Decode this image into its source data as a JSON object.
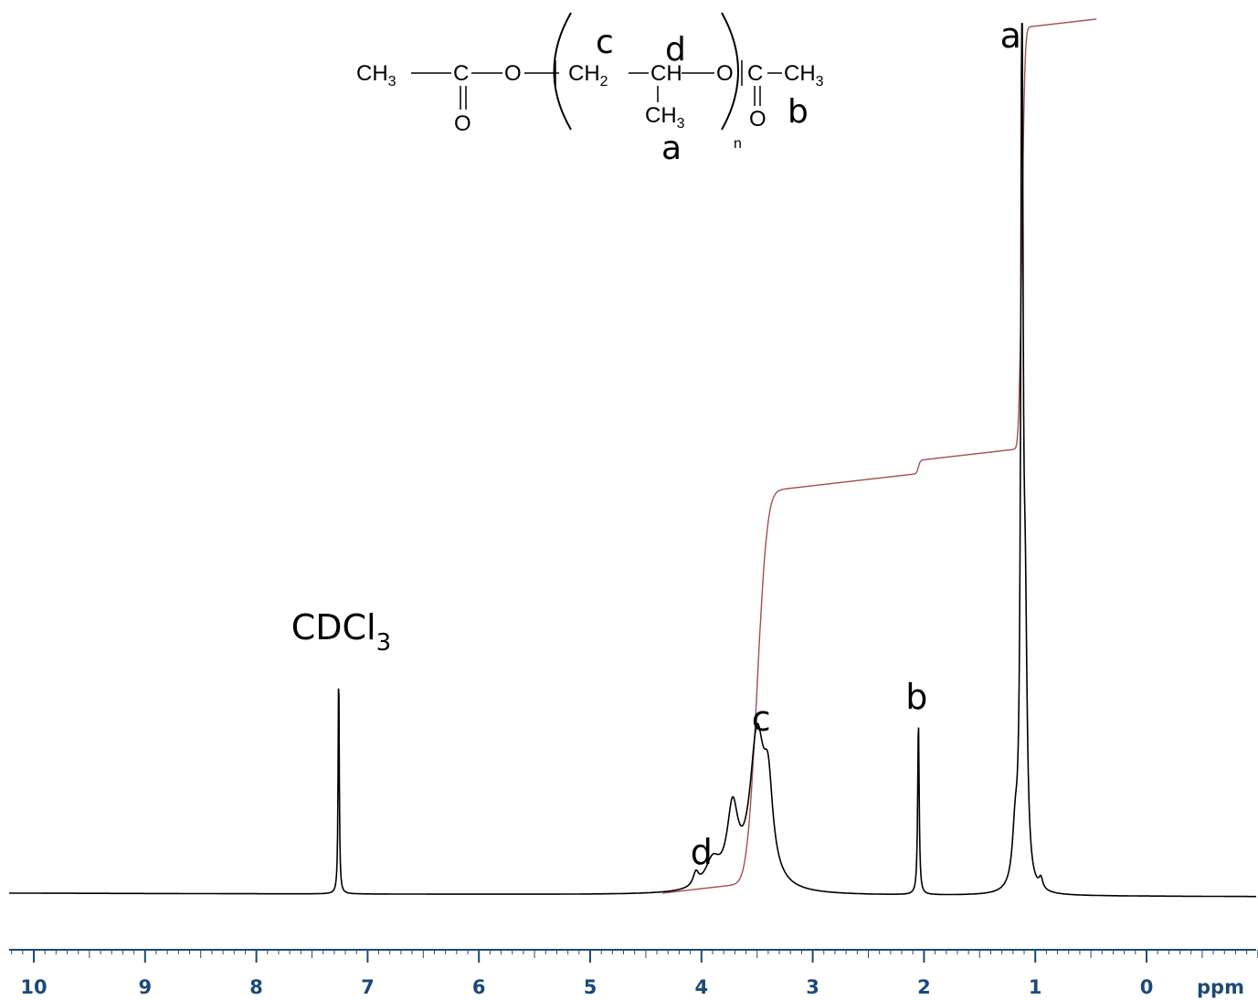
{
  "chart_data": {
    "type": "line",
    "xlabel": "ppm",
    "xlim": [
      10.2,
      -1.0
    ],
    "x_reversed": true,
    "x_ticks": [
      10,
      9,
      8,
      7,
      6,
      5,
      4,
      3,
      2,
      1,
      0
    ],
    "peak_labels": [
      {
        "label": "CDCl3",
        "main": "CDCl",
        "sub": "3",
        "ppm": 7.26
      },
      {
        "label": "d",
        "ppm": 4.0
      },
      {
        "label": "c",
        "ppm": 3.5
      },
      {
        "label": "b",
        "ppm": 2.05
      },
      {
        "label": "a",
        "ppm": 1.12
      }
    ],
    "spectrum": {
      "peaks": [
        {
          "ppm": 7.26,
          "height": 0.258,
          "width": 0.006
        },
        {
          "ppm": 2.05,
          "height": 0.198,
          "width": 0.008
        },
        {
          "ppm": 1.12,
          "height": 0.99,
          "width": 0.012
        },
        {
          "ppm": 1.09,
          "height": 0.27,
          "width": 0.02
        },
        {
          "ppm": 1.18,
          "height": 0.06,
          "width": 0.03
        },
        {
          "ppm": 0.95,
          "height": 0.012,
          "width": 0.02
        },
        {
          "ppm": 3.5,
          "height": 0.17,
          "width": 0.08
        },
        {
          "ppm": 3.4,
          "height": 0.09,
          "width": 0.05
        },
        {
          "ppm": 3.72,
          "height": 0.085,
          "width": 0.06
        },
        {
          "ppm": 3.9,
          "height": 0.03,
          "width": 0.08
        },
        {
          "ppm": 4.05,
          "height": 0.015,
          "width": 0.03
        }
      ]
    },
    "integral": {
      "steps": [
        {
          "ppm": 3.5,
          "height": 0.445,
          "width": 0.1
        },
        {
          "ppm": 2.05,
          "height": 0.015,
          "width": 0.02
        },
        {
          "ppm": 1.12,
          "height": 0.48,
          "width": 0.03
        }
      ],
      "drift": 0.057
    },
    "colors": {
      "spectrum": "#000000",
      "integral": "#a05050",
      "axis": "#1a4a7a",
      "tick_label": "#1a4a7a"
    }
  },
  "structure": {
    "left_group": "CH",
    "left_group_sub": "3",
    "carbonyl_c": "C",
    "carbonyl_o": "O",
    "ester_o": "O",
    "ch2": "CH",
    "ch2_sub": "2",
    "ch": "CH",
    "methyl": "CH",
    "methyl_sub": "3",
    "repeat_o": "O",
    "repeat_n": "n",
    "end_c": "C",
    "end_o": "O",
    "end_methyl": "CH",
    "end_methyl_sub": "3",
    "labels": {
      "c": "c",
      "d": "d",
      "a": "a",
      "b": "b"
    }
  }
}
